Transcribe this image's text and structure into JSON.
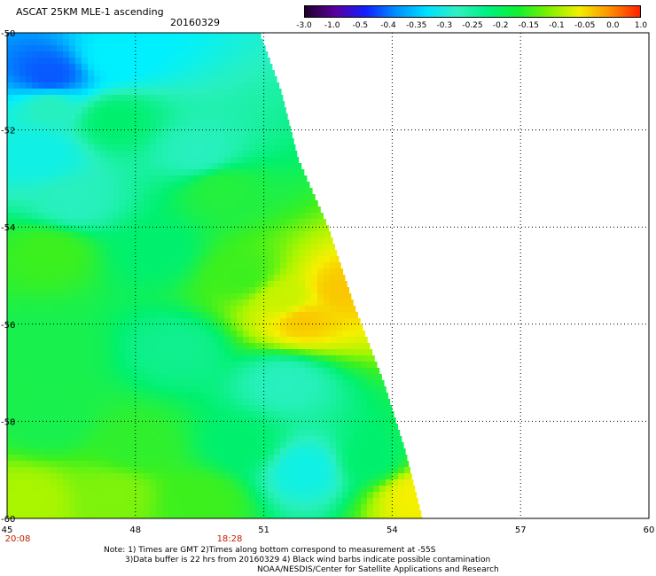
{
  "header": {
    "title": "ASCAT 25KM MLE-1 ascending",
    "date": "20160329"
  },
  "colorbar": {
    "labels": [
      "-3.0",
      "-1.0",
      "-0.5",
      "-0.4",
      "-0.35",
      "-0.3",
      "-0.25",
      "-0.2",
      "-0.15",
      "-0.1",
      "-0.05",
      "0.0",
      "1.0"
    ],
    "colors": [
      "#200028",
      "#5a00a0",
      "#1020ff",
      "#0090ff",
      "#00e0ff",
      "#30f0c0",
      "#00f080",
      "#10f030",
      "#80f000",
      "#f0f000",
      "#ff9000",
      "#ff2000"
    ]
  },
  "chart_data": {
    "type": "heatmap",
    "x_ticks": [
      "45",
      "48",
      "51",
      "54",
      "57",
      "60"
    ],
    "y_ticks": [
      "-50",
      "-52",
      "-54",
      "-56",
      "-58",
      "-60"
    ],
    "xlim": [
      45,
      60
    ],
    "ylim": [
      -60,
      -50
    ],
    "grid": true,
    "time_labels": [
      {
        "x": 45,
        "label": "20:08"
      },
      {
        "x": 50.2,
        "label": "18:28"
      }
    ],
    "swath_edge": [
      [
        -50,
        50.9
      ],
      [
        -51.2,
        51.4
      ],
      [
        -52.6,
        51.8
      ],
      [
        -54,
        52.5
      ],
      [
        -55.6,
        53.1
      ],
      [
        -57.2,
        53.8
      ],
      [
        -58.6,
        54.3
      ],
      [
        -60,
        54.7
      ]
    ],
    "field": [
      {
        "lat": -50.9,
        "lon": 46.0,
        "value": -0.45
      },
      {
        "lat": -50.5,
        "lon": 47.5,
        "value": -0.3
      },
      {
        "lat": -51.5,
        "lon": 46.0,
        "value": -0.25
      },
      {
        "lat": -51.8,
        "lon": 47.5,
        "value": -0.2
      },
      {
        "lat": -52.5,
        "lon": 45.8,
        "value": -0.28
      },
      {
        "lat": -52.5,
        "lon": 49.5,
        "value": -0.25
      },
      {
        "lat": -53.5,
        "lon": 46.5,
        "value": -0.25
      },
      {
        "lat": -53.2,
        "lon": 50.0,
        "value": -0.17
      },
      {
        "lat": -54.5,
        "lon": 46.0,
        "value": -0.15
      },
      {
        "lat": -54.5,
        "lon": 48.5,
        "value": -0.2
      },
      {
        "lat": -55.0,
        "lon": 50.5,
        "value": -0.15
      },
      {
        "lat": -55.5,
        "lon": 51.5,
        "value": -0.08
      },
      {
        "lat": -55.9,
        "lon": 51.9,
        "value": -0.03
      },
      {
        "lat": -55.3,
        "lon": 52.8,
        "value": -0.03
      },
      {
        "lat": -56.5,
        "lon": 46.0,
        "value": -0.18
      },
      {
        "lat": -56.5,
        "lon": 49.0,
        "value": -0.22
      },
      {
        "lat": -57.2,
        "lon": 51.5,
        "value": -0.25
      },
      {
        "lat": -58.0,
        "lon": 46.0,
        "value": -0.18
      },
      {
        "lat": -58.5,
        "lon": 48.0,
        "value": -0.16
      },
      {
        "lat": -58.5,
        "lon": 50.5,
        "value": -0.2
      },
      {
        "lat": -59.0,
        "lon": 52.0,
        "value": -0.28
      },
      {
        "lat": -58.8,
        "lon": 53.5,
        "value": -0.2
      },
      {
        "lat": -59.6,
        "lon": 45.5,
        "value": -0.1
      },
      {
        "lat": -59.5,
        "lon": 47.5,
        "value": -0.12
      },
      {
        "lat": -59.6,
        "lon": 49.5,
        "value": -0.15
      },
      {
        "lat": -59.5,
        "lon": 54.6,
        "value": -0.05
      }
    ]
  },
  "notes": {
    "line1": "Note: 1) Times are GMT 2)Times along bottom correspond to measurement at -55S",
    "line2": "3)Data buffer is 22 hrs from 20160329 4) Black wind barbs indicate possible contamination",
    "line3": "NOAA/NESDIS/Center for Satellite Applications and Research"
  }
}
